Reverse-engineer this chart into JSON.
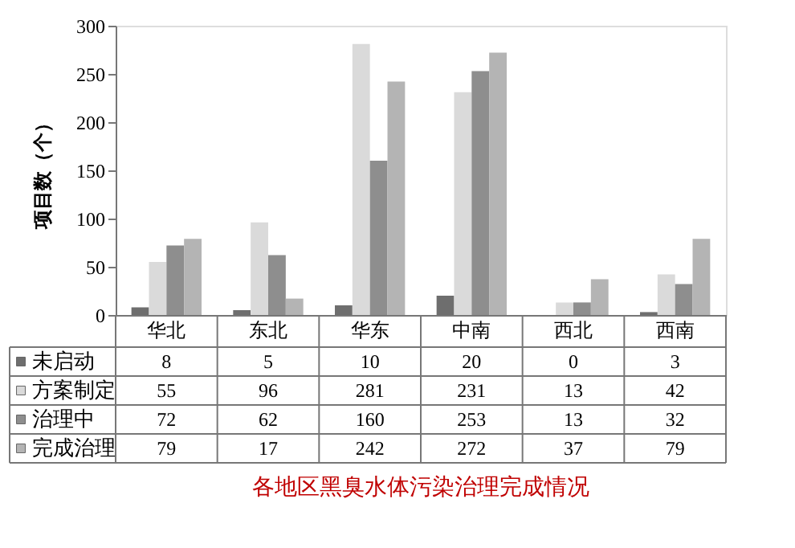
{
  "chart_data": {
    "type": "bar",
    "title": "各地区黑臭水体污染治理完成情况",
    "ylabel": "项目数（个）",
    "categories": [
      "华北",
      "东北",
      "华东",
      "中南",
      "西北",
      "西南"
    ],
    "series": [
      {
        "name": "未启动",
        "color": "#6e6e6e",
        "values": [
          8,
          5,
          10,
          20,
          0,
          3
        ]
      },
      {
        "name": "方案制定",
        "color": "#dadada",
        "values": [
          55,
          96,
          281,
          231,
          13,
          42
        ]
      },
      {
        "name": "治理中",
        "color": "#8e8e8e",
        "values": [
          72,
          62,
          160,
          253,
          13,
          32
        ]
      },
      {
        "name": "完成治理",
        "color": "#b4b4b4",
        "values": [
          79,
          17,
          242,
          272,
          37,
          79
        ]
      }
    ],
    "ylim": [
      0,
      300
    ],
    "yticks": [
      0,
      50,
      100,
      150,
      200,
      250,
      300
    ],
    "grid": false,
    "legend": "bottom",
    "data_labels": true
  }
}
